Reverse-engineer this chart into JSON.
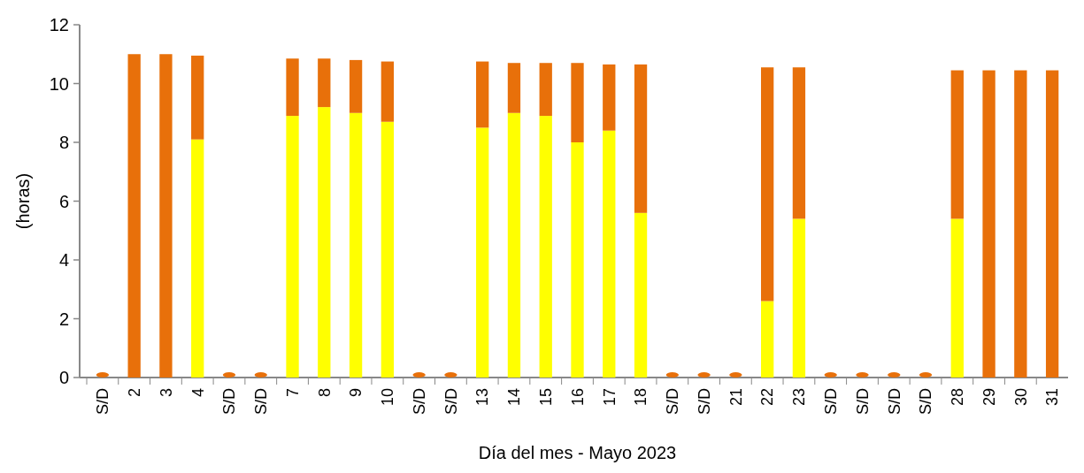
{
  "chart_data": {
    "type": "bar",
    "stacked": true,
    "xlabel": "Día del mes - Mayo 2023",
    "ylabel": "(horas)",
    "categories": [
      "S/D",
      "2",
      "3",
      "4",
      "S/D",
      "S/D",
      "7",
      "8",
      "9",
      "10",
      "S/D",
      "S/D",
      "13",
      "14",
      "15",
      "16",
      "17",
      "18",
      "S/D",
      "S/D",
      "21",
      "22",
      "23",
      "S/D",
      "S/D",
      "S/D",
      "S/D",
      "28",
      "29",
      "30",
      "31"
    ],
    "series": [
      {
        "color": "#ffff00",
        "values": [
          null,
          0,
          0,
          8.1,
          null,
          null,
          8.9,
          9.2,
          9.0,
          8.7,
          null,
          null,
          8.5,
          9.0,
          8.9,
          8.0,
          8.4,
          5.6,
          null,
          null,
          null,
          2.6,
          5.4,
          null,
          null,
          null,
          null,
          5.4,
          0,
          0,
          0
        ]
      },
      {
        "color": "#e8700a",
        "values": [
          null,
          11.0,
          11.0,
          2.85,
          null,
          null,
          1.95,
          1.65,
          1.8,
          2.05,
          null,
          null,
          2.25,
          1.7,
          1.8,
          2.7,
          2.25,
          5.05,
          null,
          null,
          null,
          7.95,
          5.15,
          null,
          null,
          null,
          null,
          5.05,
          10.45,
          10.45,
          10.45
        ]
      }
    ],
    "ylim": [
      0,
      12
    ],
    "yticks": [
      0,
      2,
      4,
      6,
      8,
      10,
      12
    ],
    "grid": false
  }
}
